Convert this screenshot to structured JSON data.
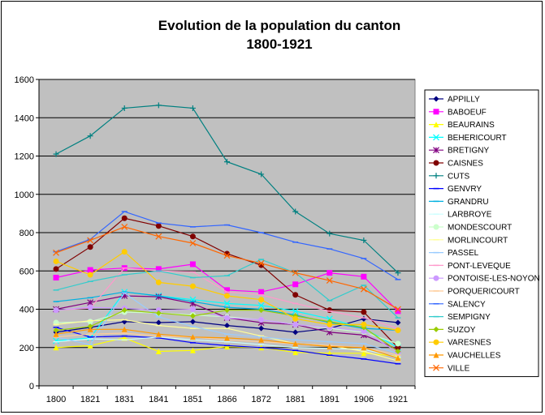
{
  "chart_data": {
    "type": "line",
    "title": "Evolution de la population du canton",
    "subtitle": "1800-1921",
    "xlabel": "",
    "ylabel": "",
    "categories": [
      "1800",
      "1821",
      "1831",
      "1841",
      "1851",
      "1866",
      "1872",
      "1881",
      "1891",
      "1906",
      "1921"
    ],
    "ylim": [
      0,
      1600
    ],
    "yticks": [
      0,
      200,
      400,
      600,
      800,
      1000,
      1200,
      1400,
      1600
    ],
    "grid": true,
    "plot_background": "#c0c0c0",
    "legend_position": "right",
    "series": [
      {
        "name": "APPILLY",
        "color": "#000080",
        "marker": "diamond",
        "values": [
          280,
          305,
          335,
          330,
          335,
          315,
          300,
          280,
          300,
          350,
          330
        ]
      },
      {
        "name": "BABOEUF",
        "color": "#ff00ff",
        "marker": "square",
        "values": [
          565,
          605,
          615,
          610,
          635,
          500,
          490,
          530,
          590,
          570,
          390
        ]
      },
      {
        "name": "BEAURAINS",
        "color": "#ffff00",
        "marker": "triangle",
        "values": [
          200,
          210,
          250,
          180,
          185,
          205,
          200,
          175,
          170,
          170,
          155
        ]
      },
      {
        "name": "BEHERICOURT",
        "color": "#00ffff",
        "marker": "x",
        "values": [
          235,
          250,
          490,
          470,
          450,
          430,
          420,
          390,
          350,
          300,
          200
        ]
      },
      {
        "name": "BRETIGNY",
        "color": "#800080",
        "marker": "star",
        "values": [
          400,
          435,
          470,
          465,
          430,
          355,
          330,
          320,
          280,
          265,
          190
        ]
      },
      {
        "name": "CAISNES",
        "color": "#800000",
        "marker": "circle",
        "values": [
          610,
          725,
          875,
          835,
          780,
          690,
          630,
          475,
          395,
          385,
          200
        ]
      },
      {
        "name": "CUTS",
        "color": "#008080",
        "marker": "plus",
        "values": [
          1210,
          1305,
          1450,
          1465,
          1450,
          1170,
          1105,
          910,
          795,
          760,
          590
        ]
      },
      {
        "name": "GENVRY",
        "color": "#0000ff",
        "marker": "dash",
        "values": [
          305,
          255,
          260,
          250,
          225,
          210,
          200,
          185,
          160,
          140,
          115
        ]
      },
      {
        "name": "GRANDRU",
        "color": "#00b0e0",
        "marker": "dash",
        "values": [
          440,
          460,
          490,
          470,
          440,
          410,
          400,
          370,
          330,
          300,
          290
        ]
      },
      {
        "name": "LARBROYE",
        "color": "#ccffff",
        "marker": "dash",
        "values": [
          230,
          245,
          240,
          255,
          240,
          230,
          215,
          200,
          195,
          190,
          150
        ]
      },
      {
        "name": "MONDESCOURT",
        "color": "#ccffcc",
        "marker": "circle",
        "values": [
          330,
          335,
          385,
          380,
          370,
          360,
          345,
          320,
          300,
          280,
          220
        ]
      },
      {
        "name": "MORLINCOURT",
        "color": "#ffff99",
        "marker": "dash",
        "values": [
          320,
          340,
          345,
          315,
          300,
          300,
          260,
          220,
          210,
          180,
          130
        ]
      },
      {
        "name": "PASSEL",
        "color": "#99ccff",
        "marker": "dash",
        "values": [
          255,
          215,
          485,
          360,
          310,
          270,
          255,
          240,
          230,
          220,
          170
        ]
      },
      {
        "name": "PONT-LEVEQUE",
        "color": "#ff99cc",
        "marker": "dash",
        "values": [
          395,
          405,
          615,
          600,
          595,
          490,
          475,
          430,
          390,
          355,
          300
        ]
      },
      {
        "name": "PONTOISE-LES-NOYON",
        "color": "#cc99ff",
        "marker": "circle",
        "values": [
          395,
          410,
          405,
          395,
          400,
          355,
          345,
          320,
          305,
          285,
          175
        ]
      },
      {
        "name": "PORQUERICOURT",
        "color": "#ffcc99",
        "marker": "dash",
        "values": [
          255,
          270,
          275,
          260,
          255,
          240,
          230,
          220,
          210,
          200,
          160
        ]
      },
      {
        "name": "SALENCY",
        "color": "#3366ff",
        "marker": "dash",
        "values": [
          700,
          765,
          910,
          850,
          830,
          840,
          800,
          750,
          715,
          665,
          555
        ]
      },
      {
        "name": "SEMPIGNY",
        "color": "#33cccc",
        "marker": "dash",
        "values": [
          500,
          545,
          580,
          600,
          565,
          575,
          660,
          590,
          445,
          525,
          355
        ]
      },
      {
        "name": "SUZOY",
        "color": "#99cc00",
        "marker": "diamond",
        "values": [
          290,
          310,
          395,
          380,
          365,
          395,
          395,
          365,
          335,
          305,
          180
        ]
      },
      {
        "name": "VARESNES",
        "color": "#ffcc00",
        "marker": "circle",
        "values": [
          650,
          580,
          700,
          540,
          520,
          470,
          450,
          350,
          320,
          320,
          290
        ]
      },
      {
        "name": "VAUCHELLES",
        "color": "#ff9900",
        "marker": "triangle",
        "values": [
          270,
          295,
          295,
          270,
          255,
          250,
          240,
          220,
          205,
          200,
          145
        ]
      },
      {
        "name": "VILLE",
        "color": "#ff6600",
        "marker": "x",
        "values": [
          695,
          760,
          830,
          780,
          745,
          680,
          640,
          590,
          550,
          505,
          400
        ]
      }
    ]
  }
}
